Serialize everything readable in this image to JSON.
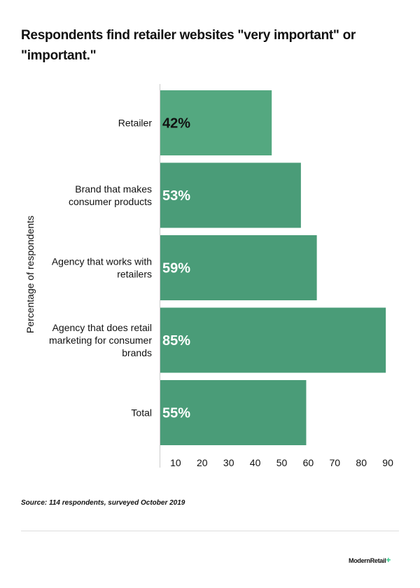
{
  "chart_data": {
    "type": "bar",
    "orientation": "horizontal",
    "title": "Respondents find retailer websites \"very important\" or \"important.\"",
    "ylabel": "Percentage of respondents",
    "xlabel": "",
    "categories": [
      "Retailer",
      "Brand that makes consumer products",
      "Agency that works with retailers",
      "Agency that does retail marketing for consumer brands",
      "Total"
    ],
    "category_lines": [
      [
        "Retailer"
      ],
      [
        "Brand that makes",
        "consumer products"
      ],
      [
        "Agency that works with",
        "retailers"
      ],
      [
        "Agency that does retail",
        "marketing for consumer",
        "brands"
      ],
      [
        "Total"
      ]
    ],
    "values": [
      42,
      53,
      59,
      85,
      55
    ],
    "data_labels": [
      "42%",
      "53%",
      "59%",
      "85%",
      "55%"
    ],
    "xticks": [
      10,
      20,
      30,
      40,
      50,
      60,
      70,
      80,
      90
    ],
    "xlim": [
      0,
      90
    ],
    "grid": false,
    "colors": [
      "#54a880",
      "#4a9c78",
      "#4a9c78",
      "#4a9c78",
      "#4a9c78"
    ],
    "label_colors": [
      "#111111",
      "#ffffff",
      "#ffffff",
      "#ffffff",
      "#ffffff"
    ]
  },
  "source": "Source: 114 respondents, surveyed October 2019",
  "logo": {
    "text": "ModernRetail",
    "mark": "+"
  }
}
